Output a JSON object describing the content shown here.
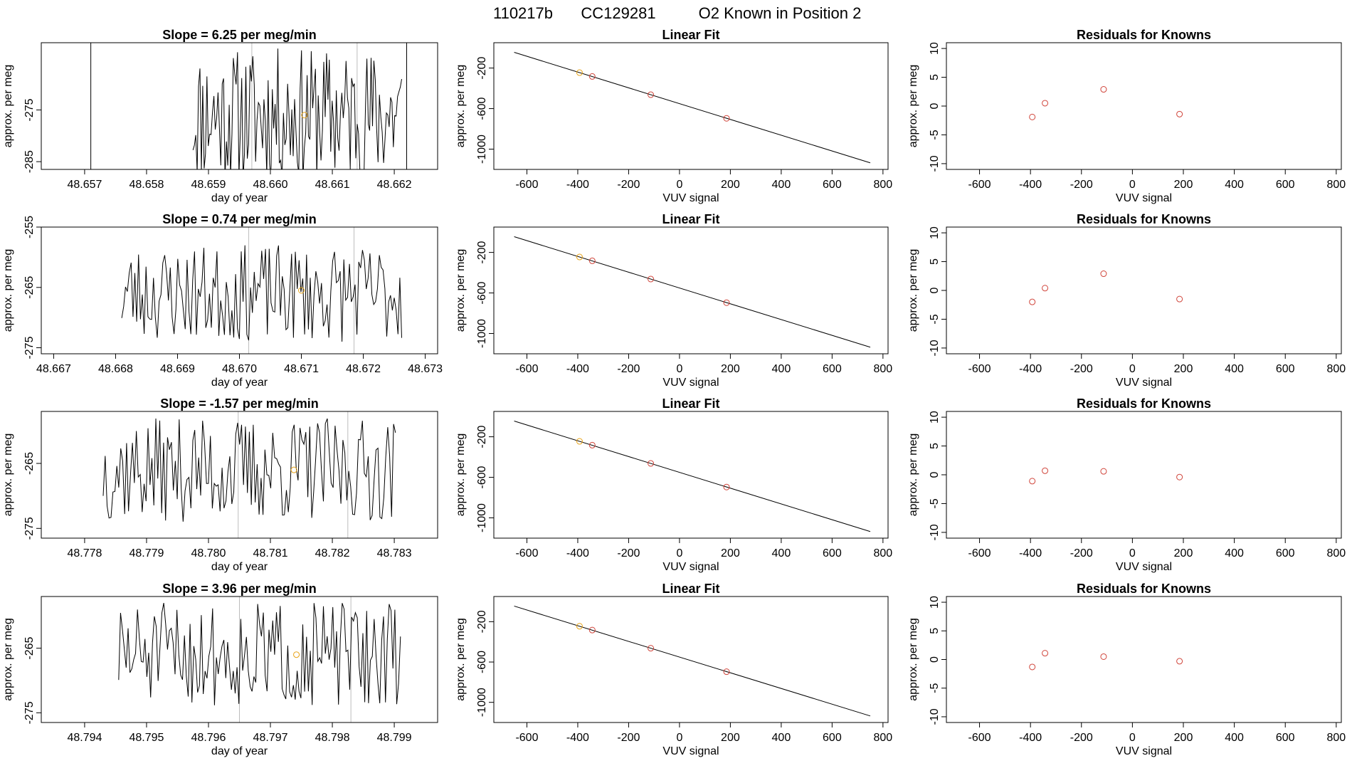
{
  "page_title": {
    "run_id": "110217b",
    "cylinder": "CC129281",
    "description": "O2 Known in Position  2"
  },
  "colors": {
    "trace": "#000000",
    "highlight_point": "#e8a317",
    "known_point": "#d0443a",
    "guide_line": "#bdbdbd"
  },
  "chart_data": [
    {
      "type": "line",
      "row": 0,
      "column": "time_series",
      "title": "Slope =  6.25  per meg/min",
      "xlabel": "day of year",
      "ylabel": "approx. per meg",
      "xlim": [
        48.6563,
        48.6627
      ],
      "ylim": [
        -286.5,
        -262
      ],
      "xticks": [
        48.657,
        48.658,
        48.659,
        48.66,
        48.661,
        48.662
      ],
      "xtick_labels": [
        "48.657",
        "48.658",
        "48.659",
        "48.660",
        "48.661",
        "48.662"
      ],
      "yticks": [
        -285,
        -275
      ],
      "ytick_labels": [
        "-285",
        "-275"
      ],
      "vertical_guides": [
        48.6597,
        48.6614
      ],
      "spikes": [
        48.6571,
        48.6622
      ],
      "trace": {
        "start": 48.65875,
        "end": 48.66212,
        "base": -276,
        "amp": 13,
        "seed": 11
      },
      "marker": {
        "x": 48.66055,
        "y": -276
      }
    },
    {
      "type": "line",
      "row": 0,
      "column": "linear_fit",
      "title": "Linear Fit",
      "xlabel": "VUV signal",
      "ylabel": "approx. per meg",
      "xlim": [
        -730,
        820
      ],
      "ylim": [
        -1200,
        50
      ],
      "xticks": [
        -600,
        -400,
        -200,
        0,
        200,
        400,
        600,
        800
      ],
      "xtick_labels": [
        "-600",
        "-400",
        "-200",
        "0",
        "200",
        "400",
        "600",
        "800"
      ],
      "yticks": [
        -1000,
        -600,
        -200
      ],
      "ytick_labels": [
        "-1000",
        "-600",
        "-200"
      ],
      "fit_line": {
        "x": [
          -650,
          750
        ],
        "y": [
          -45,
          -1135
        ]
      },
      "points": [
        {
          "x": -393,
          "y": -245,
          "kind": "highlight"
        },
        {
          "x": -343,
          "y": -283,
          "kind": "known"
        },
        {
          "x": -113,
          "y": -463,
          "kind": "known"
        },
        {
          "x": 185,
          "y": -696,
          "kind": "known"
        }
      ]
    },
    {
      "type": "scatter",
      "row": 0,
      "column": "residuals",
      "title": "Residuals for Knowns",
      "xlabel": "VUV signal",
      "ylabel": "approx. per meg",
      "xlim": [
        -730,
        820
      ],
      "ylim": [
        -11,
        11
      ],
      "xticks": [
        -600,
        -400,
        -200,
        0,
        200,
        400,
        600,
        800
      ],
      "xtick_labels": [
        "-600",
        "-400",
        "-200",
        "0",
        "200",
        "400",
        "600",
        "800"
      ],
      "yticks": [
        -10,
        -5,
        0,
        5,
        10
      ],
      "ytick_labels": [
        "-10",
        "-5",
        "0",
        "5",
        "10"
      ],
      "points": [
        {
          "x": -393,
          "y": -1.9,
          "kind": "known"
        },
        {
          "x": -343,
          "y": 0.5,
          "kind": "known"
        },
        {
          "x": -113,
          "y": 2.9,
          "kind": "known"
        },
        {
          "x": 185,
          "y": -1.4,
          "kind": "known"
        }
      ]
    },
    {
      "type": "line",
      "row": 1,
      "column": "time_series",
      "title": "Slope =  0.74  per meg/min",
      "xlabel": "day of year",
      "ylabel": "approx. per meg",
      "xlim": [
        48.6668,
        48.6732
      ],
      "ylim": [
        -276,
        -255
      ],
      "xticks": [
        48.667,
        48.668,
        48.669,
        48.67,
        48.671,
        48.672,
        48.673
      ],
      "xtick_labels": [
        "48.667",
        "48.668",
        "48.669",
        "48.670",
        "48.671",
        "48.672",
        "48.673"
      ],
      "yticks": [
        -275,
        -265,
        -255
      ],
      "ytick_labels": [
        "-275",
        "-265",
        "-255"
      ],
      "vertical_guides": [
        48.67015,
        48.67185
      ],
      "spikes": [],
      "trace": {
        "start": 48.6681,
        "end": 48.67262,
        "base": -266,
        "amp": 8,
        "seed": 23
      },
      "marker": {
        "x": 48.671,
        "y": -265.5
      }
    },
    {
      "type": "line",
      "row": 1,
      "column": "linear_fit",
      "title": "Linear Fit",
      "xlabel": "VUV signal",
      "ylabel": "approx. per meg",
      "xlim": [
        -730,
        820
      ],
      "ylim": [
        -1200,
        50
      ],
      "xticks": [
        -600,
        -400,
        -200,
        0,
        200,
        400,
        600,
        800
      ],
      "xtick_labels": [
        "-600",
        "-400",
        "-200",
        "0",
        "200",
        "400",
        "600",
        "800"
      ],
      "yticks": [
        -1000,
        -600,
        -200
      ],
      "ytick_labels": [
        "-1000",
        "-600",
        "-200"
      ],
      "fit_line": {
        "x": [
          -650,
          750
        ],
        "y": [
          -45,
          -1135
        ]
      },
      "points": [
        {
          "x": -393,
          "y": -245,
          "kind": "highlight"
        },
        {
          "x": -343,
          "y": -283,
          "kind": "known"
        },
        {
          "x": -113,
          "y": -463,
          "kind": "known"
        },
        {
          "x": 185,
          "y": -696,
          "kind": "known"
        }
      ]
    },
    {
      "type": "scatter",
      "row": 1,
      "column": "residuals",
      "title": "Residuals for Knowns",
      "xlabel": "VUV signal",
      "ylabel": "approx. per meg",
      "xlim": [
        -730,
        820
      ],
      "ylim": [
        -11,
        11
      ],
      "xticks": [
        -600,
        -400,
        -200,
        0,
        200,
        400,
        600,
        800
      ],
      "xtick_labels": [
        "-600",
        "-400",
        "-200",
        "0",
        "200",
        "400",
        "600",
        "800"
      ],
      "yticks": [
        -10,
        -5,
        0,
        5,
        10
      ],
      "ytick_labels": [
        "-10",
        "-5",
        "0",
        "5",
        "10"
      ],
      "points": [
        {
          "x": -393,
          "y": -2.0,
          "kind": "known"
        },
        {
          "x": -343,
          "y": 0.4,
          "kind": "known"
        },
        {
          "x": -113,
          "y": 2.9,
          "kind": "known"
        },
        {
          "x": 185,
          "y": -1.5,
          "kind": "known"
        }
      ]
    },
    {
      "type": "line",
      "row": 2,
      "column": "time_series",
      "title": "Slope =  -1.57  per meg/min",
      "xlabel": "day of year",
      "ylabel": "approx. per meg",
      "xlim": [
        48.7773,
        48.7837
      ],
      "ylim": [
        -276.5,
        -257
      ],
      "xticks": [
        48.778,
        48.779,
        48.78,
        48.781,
        48.782,
        48.783
      ],
      "xtick_labels": [
        "48.778",
        "48.779",
        "48.780",
        "48.781",
        "48.782",
        "48.783"
      ],
      "yticks": [
        -275,
        -265
      ],
      "ytick_labels": [
        "-275",
        "-265"
      ],
      "vertical_guides": [
        48.78048,
        48.78225
      ],
      "spikes": [],
      "trace": {
        "start": 48.7783,
        "end": 48.78302,
        "base": -266,
        "amp": 8,
        "seed": 37
      },
      "marker": {
        "x": 48.78138,
        "y": -266
      }
    },
    {
      "type": "line",
      "row": 2,
      "column": "linear_fit",
      "title": "Linear Fit",
      "xlabel": "VUV signal",
      "ylabel": "approx. per meg",
      "xlim": [
        -730,
        820
      ],
      "ylim": [
        -1200,
        50
      ],
      "xticks": [
        -600,
        -400,
        -200,
        0,
        200,
        400,
        600,
        800
      ],
      "xtick_labels": [
        "-600",
        "-400",
        "-200",
        "0",
        "200",
        "400",
        "600",
        "800"
      ],
      "yticks": [
        -1000,
        -600,
        -200
      ],
      "ytick_labels": [
        "-1000",
        "-600",
        "-200"
      ],
      "fit_line": {
        "x": [
          -650,
          750
        ],
        "y": [
          -45,
          -1135
        ]
      },
      "points": [
        {
          "x": -393,
          "y": -245,
          "kind": "highlight"
        },
        {
          "x": -343,
          "y": -283,
          "kind": "known"
        },
        {
          "x": -113,
          "y": -463,
          "kind": "known"
        },
        {
          "x": 185,
          "y": -696,
          "kind": "known"
        }
      ]
    },
    {
      "type": "scatter",
      "row": 2,
      "column": "residuals",
      "title": "Residuals for Knowns",
      "xlabel": "VUV signal",
      "ylabel": "approx. per meg",
      "xlim": [
        -730,
        820
      ],
      "ylim": [
        -11,
        11
      ],
      "xticks": [
        -600,
        -400,
        -200,
        0,
        200,
        400,
        600,
        800
      ],
      "xtick_labels": [
        "-600",
        "-400",
        "-200",
        "0",
        "200",
        "400",
        "600",
        "800"
      ],
      "yticks": [
        -10,
        -5,
        0,
        5,
        10
      ],
      "ytick_labels": [
        "-10",
        "-5",
        "0",
        "5",
        "10"
      ],
      "points": [
        {
          "x": -393,
          "y": -1.1,
          "kind": "known"
        },
        {
          "x": -343,
          "y": 0.7,
          "kind": "known"
        },
        {
          "x": -113,
          "y": 0.6,
          "kind": "known"
        },
        {
          "x": 185,
          "y": -0.4,
          "kind": "known"
        }
      ]
    },
    {
      "type": "line",
      "row": 3,
      "column": "time_series",
      "title": "Slope =  3.96  per meg/min",
      "xlabel": "day of year",
      "ylabel": "approx. per meg",
      "xlim": [
        48.7933,
        48.7997
      ],
      "ylim": [
        -276.5,
        -257
      ],
      "xticks": [
        48.794,
        48.795,
        48.796,
        48.797,
        48.798,
        48.799
      ],
      "xtick_labels": [
        "48.794",
        "48.795",
        "48.796",
        "48.797",
        "48.798",
        "48.799"
      ],
      "yticks": [
        -275,
        -265
      ],
      "ytick_labels": [
        "-275",
        "-265"
      ],
      "vertical_guides": [
        48.7965,
        48.7983
      ],
      "spikes": [],
      "trace": {
        "start": 48.79455,
        "end": 48.7991,
        "base": -266,
        "amp": 8,
        "seed": 51
      },
      "marker": {
        "x": 48.79742,
        "y": -266
      }
    },
    {
      "type": "line",
      "row": 3,
      "column": "linear_fit",
      "title": "Linear Fit",
      "xlabel": "VUV signal",
      "ylabel": "approx. per meg",
      "xlim": [
        -730,
        820
      ],
      "ylim": [
        -1200,
        50
      ],
      "xticks": [
        -600,
        -400,
        -200,
        0,
        200,
        400,
        600,
        800
      ],
      "xtick_labels": [
        "-600",
        "-400",
        "-200",
        "0",
        "200",
        "400",
        "600",
        "800"
      ],
      "yticks": [
        -1000,
        -600,
        -200
      ],
      "ytick_labels": [
        "-1000",
        "-600",
        "-200"
      ],
      "fit_line": {
        "x": [
          -650,
          750
        ],
        "y": [
          -45,
          -1135
        ]
      },
      "points": [
        {
          "x": -393,
          "y": -245,
          "kind": "highlight"
        },
        {
          "x": -343,
          "y": -283,
          "kind": "known"
        },
        {
          "x": -113,
          "y": -463,
          "kind": "known"
        },
        {
          "x": 185,
          "y": -696,
          "kind": "known"
        }
      ]
    },
    {
      "type": "scatter",
      "row": 3,
      "column": "residuals",
      "title": "Residuals for Knowns",
      "xlabel": "VUV signal",
      "ylabel": "approx. per meg",
      "xlim": [
        -730,
        820
      ],
      "ylim": [
        -11,
        11
      ],
      "xticks": [
        -600,
        -400,
        -200,
        0,
        200,
        400,
        600,
        800
      ],
      "xtick_labels": [
        "-600",
        "-400",
        "-200",
        "0",
        "200",
        "400",
        "600",
        "800"
      ],
      "yticks": [
        -10,
        -5,
        0,
        5,
        10
      ],
      "ytick_labels": [
        "-10",
        "-5",
        "0",
        "5",
        "10"
      ],
      "points": [
        {
          "x": -393,
          "y": -1.3,
          "kind": "known"
        },
        {
          "x": -343,
          "y": 1.1,
          "kind": "known"
        },
        {
          "x": -113,
          "y": 0.5,
          "kind": "known"
        },
        {
          "x": 185,
          "y": -0.3,
          "kind": "known"
        }
      ]
    }
  ]
}
